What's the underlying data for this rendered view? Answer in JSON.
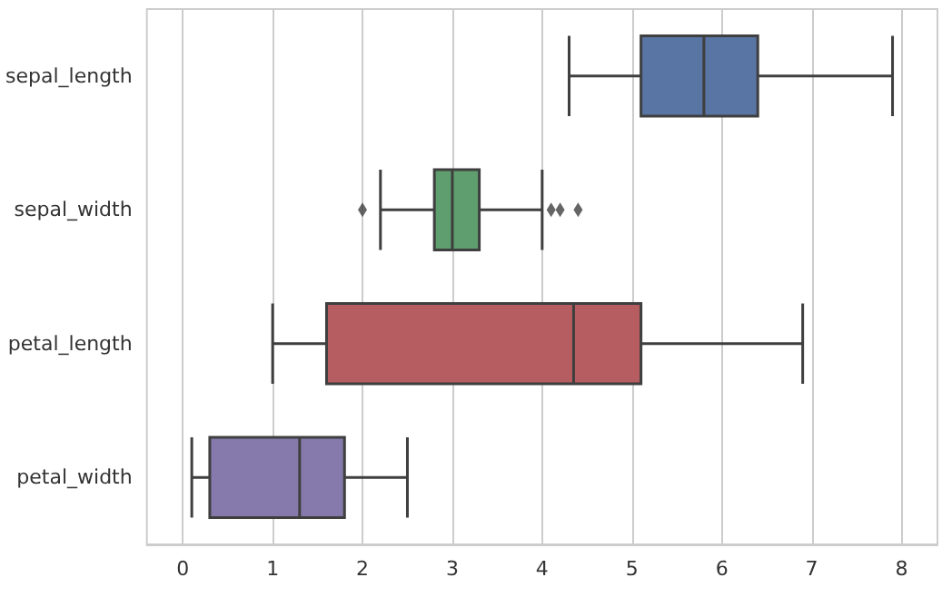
{
  "chart_data": {
    "type": "box",
    "orientation": "horizontal",
    "categories": [
      "sepal_length",
      "sepal_width",
      "petal_length",
      "petal_width"
    ],
    "boxes": [
      {
        "low": 4.3,
        "q1": 5.1,
        "median": 5.8,
        "q3": 6.4,
        "high": 7.9
      },
      {
        "low": 2.2,
        "q1": 2.8,
        "median": 3.0,
        "q3": 3.3,
        "high": 4.0,
        "outliers": [
          2.0,
          4.1,
          4.2,
          4.4
        ]
      },
      {
        "low": 1.0,
        "q1": 1.6,
        "median": 4.35,
        "q3": 5.1,
        "high": 6.9
      },
      {
        "low": 0.1,
        "q1": 0.3,
        "median": 1.3,
        "q3": 1.8,
        "high": 2.5
      }
    ],
    "colors": [
      "#5875a4",
      "#5f9e6e",
      "#b55d60",
      "#857aab"
    ],
    "xlim": [
      -0.4,
      8.4
    ],
    "xticks": [
      0,
      1,
      2,
      3,
      4,
      5,
      6,
      7,
      8
    ],
    "grid": "x"
  }
}
